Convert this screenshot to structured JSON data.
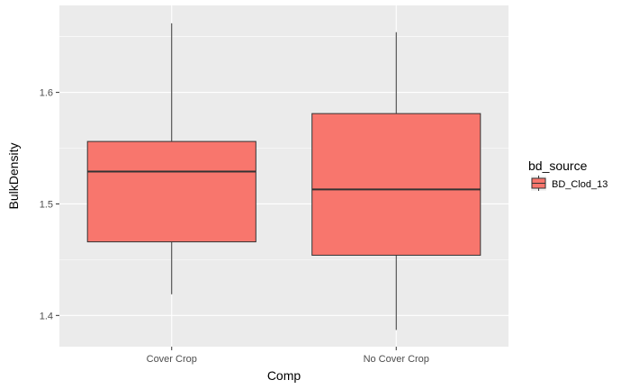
{
  "chart_data": {
    "type": "boxplot",
    "title": "",
    "xlabel": "Comp",
    "ylabel": "BulkDensity",
    "categories": [
      "Cover Crop",
      "No Cover Crop"
    ],
    "ylim": [
      1.372,
      1.678
    ],
    "yticks": [
      1.4,
      1.5,
      1.6
    ],
    "ytick_labels": [
      "1.4",
      "1.5",
      "1.6"
    ],
    "grid": true,
    "series": [
      {
        "name": "BD_Clod_13",
        "color": "#F8766D",
        "boxes": [
          {
            "category": "Cover Crop",
            "min": 1.419,
            "q1": 1.466,
            "median": 1.529,
            "q3": 1.556,
            "max": 1.662
          },
          {
            "category": "No Cover Crop",
            "min": 1.387,
            "q1": 1.454,
            "median": 1.513,
            "q3": 1.581,
            "max": 1.654
          }
        ]
      }
    ],
    "legend": {
      "title": "bd_source",
      "position": "right",
      "entries": [
        "BD_Clod_13"
      ]
    }
  }
}
